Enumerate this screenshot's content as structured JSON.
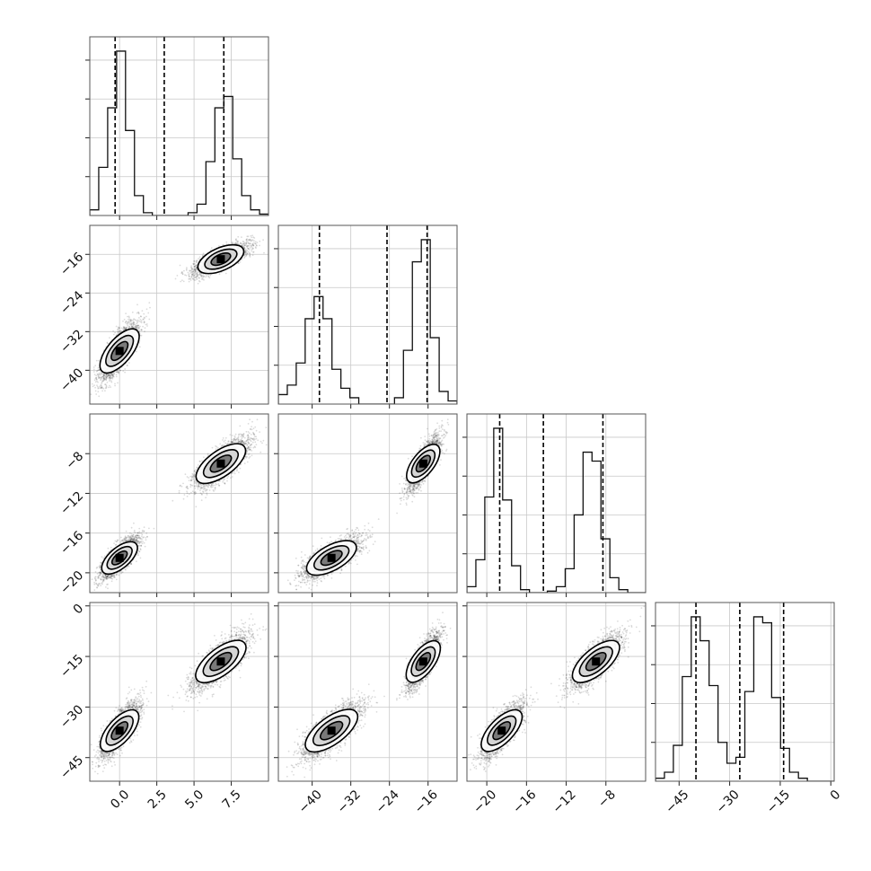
{
  "chart_data": {
    "type": "corner",
    "parameters": [
      {
        "name": "",
        "range": [
          -2,
          10
        ],
        "ticks": [
          0,
          2.5,
          5,
          7.5
        ],
        "tick_labels": [
          "0.0",
          "2.5",
          "5.0",
          "7.5"
        ],
        "quantiles": [
          -0.3,
          3.0,
          7.0
        ],
        "modes": [
          {
            "mean": 0.0,
            "sd": 0.55,
            "weight": 0.5
          },
          {
            "mean": 6.8,
            "sd": 0.8,
            "weight": 0.5
          }
        ],
        "hist": {
          "edges": [
            -2,
            10
          ],
          "counts": [
            0.02,
            0.17,
            0.38,
            0.58,
            0.3,
            0.07,
            0.01,
            0,
            0,
            0,
            0,
            0.01,
            0.04,
            0.19,
            0.38,
            0.42,
            0.2,
            0.07,
            0.02,
            0.005
          ]
        }
      },
      {
        "name": "",
        "range": [
          -47,
          -10
        ],
        "ticks": [
          -40,
          -32,
          -24,
          -16
        ],
        "tick_labels": [
          "−40",
          "−32",
          "−24",
          "−16"
        ],
        "quantiles": [
          -38.5,
          -24.5,
          -16.2
        ],
        "modes": [
          {
            "mean": -36.0,
            "sd": 2.6,
            "weight": 0.5
          },
          {
            "mean": -17.0,
            "sd": 1.4,
            "weight": 0.5
          }
        ],
        "hist": {
          "edges": [
            -47,
            -10
          ],
          "counts": [
            0.03,
            0.06,
            0.13,
            0.27,
            0.34,
            0.27,
            0.11,
            0.05,
            0.02,
            0,
            0,
            0,
            0,
            0.02,
            0.17,
            0.45,
            0.52,
            0.21,
            0.04,
            0.01
          ]
        }
      },
      {
        "name": "",
        "range": [
          -22,
          -4
        ],
        "ticks": [
          -20,
          -16,
          -12,
          -8
        ],
        "tick_labels": [
          "−20",
          "−16",
          "−12",
          "−8"
        ],
        "quantiles": [
          -18.7,
          -14.3,
          -8.3
        ],
        "modes": [
          {
            "mean": -18.5,
            "sd": 0.9,
            "weight": 0.5
          },
          {
            "mean": -9.0,
            "sd": 1.1,
            "weight": 0.5
          }
        ],
        "hist": {
          "edges": [
            -22,
            -4
          ],
          "counts": [
            0.02,
            0.11,
            0.32,
            0.55,
            0.31,
            0.09,
            0.01,
            0,
            0,
            0.005,
            0.02,
            0.08,
            0.26,
            0.47,
            0.44,
            0.18,
            0.05,
            0.01,
            0,
            0
          ]
        }
      },
      {
        "name": "",
        "range": [
          -52,
          1
        ],
        "ticks": [
          -45,
          -30,
          -15,
          0
        ],
        "tick_labels": [
          "−45",
          "−30",
          "−15",
          "0"
        ],
        "quantiles": [
          -40,
          -27,
          -14
        ],
        "modes": [
          {
            "mean": -37.0,
            "sd": 3.5,
            "weight": 0.5
          },
          {
            "mean": -16.5,
            "sd": 3.5,
            "weight": 0.5
          }
        ],
        "hist": {
          "edges": [
            -52,
            1
          ],
          "counts": [
            0.01,
            0.03,
            0.12,
            0.35,
            0.55,
            0.47,
            0.32,
            0.13,
            0.06,
            0.08,
            0.3,
            0.55,
            0.53,
            0.28,
            0.11,
            0.03,
            0.01,
            0,
            0,
            0
          ]
        }
      }
    ],
    "histogram_y_ticks": 4,
    "grid": true,
    "contours": {
      "levels": 3,
      "samples_per_mode": 2400
    }
  }
}
